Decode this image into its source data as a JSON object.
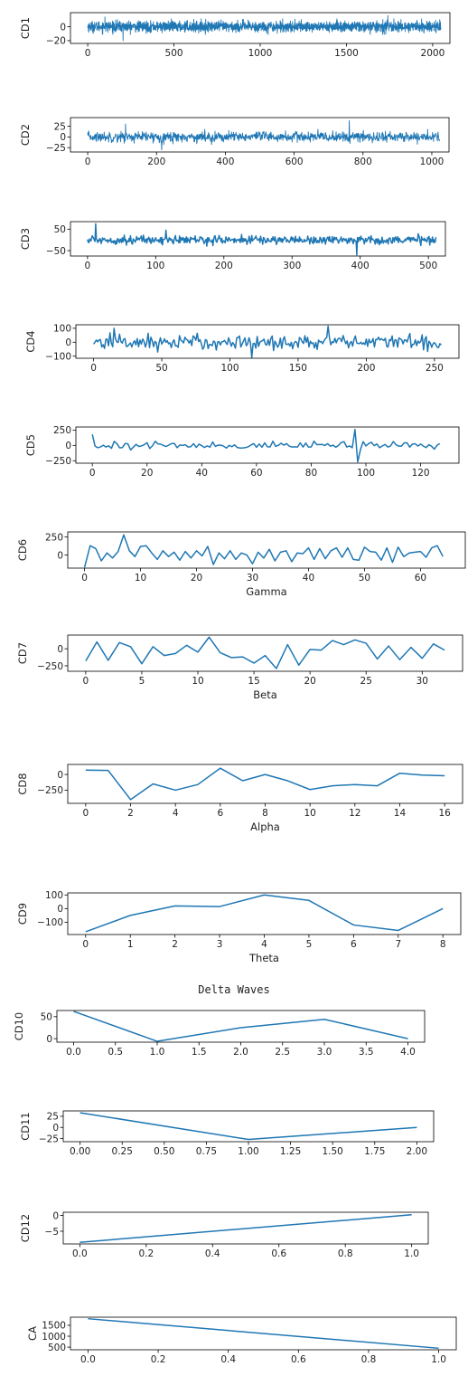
{
  "suptitle": "Delta Waves",
  "line_color": "#1f77b4",
  "chart_data": [
    {
      "type": "line",
      "ylabel": "CD1",
      "xlabel": "",
      "xlim": [
        -100,
        2100
      ],
      "ylim": [
        -24,
        20
      ],
      "xticks": [
        0,
        500,
        1000,
        1500,
        2000
      ],
      "yticks": [
        0,
        -20
      ],
      "n": 2048,
      "amplitude": 7,
      "spikes": [
        [
          205,
          -20
        ],
        [
          1740,
          16
        ],
        [
          100,
          14
        ]
      ]
    },
    {
      "type": "line",
      "ylabel": "CD2",
      "xlabel": "",
      "xlim": [
        -50,
        1050
      ],
      "ylim": [
        -35,
        45
      ],
      "xticks": [
        0,
        200,
        400,
        600,
        800,
        1000
      ],
      "yticks": [
        25,
        0,
        -25
      ],
      "n": 1024,
      "amplitude": 11,
      "spikes": [
        [
          760,
          38
        ],
        [
          110,
          30
        ],
        [
          215,
          -30
        ]
      ]
    },
    {
      "type": "line",
      "ylabel": "CD3",
      "xlabel": "",
      "xlim": [
        -25,
        525
      ],
      "ylim": [
        -75,
        85
      ],
      "xticks": [
        0,
        100,
        200,
        300,
        400,
        500
      ],
      "yticks": [
        50,
        -50
      ],
      "n": 512,
      "amplitude": 18,
      "spikes": [
        [
          12,
          75
        ],
        [
          395,
          -70
        ],
        [
          115,
          45
        ]
      ]
    },
    {
      "type": "line",
      "ylabel": "CD4",
      "xlabel": "",
      "xlim": [
        -13,
        268
      ],
      "ylim": [
        -115,
        125
      ],
      "xticks": [
        0,
        50,
        100,
        150,
        200,
        250
      ],
      "yticks": [
        100,
        0,
        -100
      ],
      "n": 256,
      "amplitude": 50,
      "spikes": [
        [
          172,
          115
        ],
        [
          116,
          -110
        ],
        [
          15,
          100
        ]
      ]
    },
    {
      "type": "line",
      "ylabel": "CD5",
      "xlabel": "",
      "xlim": [
        -6,
        134
      ],
      "ylim": [
        -290,
        300
      ],
      "xticks": [
        0,
        20,
        40,
        60,
        80,
        100,
        120
      ],
      "yticks": [
        250,
        0,
        -250
      ],
      "n": 128,
      "amplitude": 60,
      "spikes": [
        [
          0,
          180
        ],
        [
          96,
          260
        ],
        [
          97,
          -270
        ]
      ]
    },
    {
      "type": "line",
      "ylabel": "CD6",
      "xlabel": "Gamma",
      "xlim": [
        -3,
        68
      ],
      "ylim": [
        -180,
        320
      ],
      "xticks": [
        0,
        10,
        20,
        30,
        40,
        50,
        60
      ],
      "yticks": [
        250,
        0
      ],
      "x": [
        0,
        1,
        2,
        3,
        4,
        5,
        6,
        7,
        8,
        9,
        10,
        11,
        12,
        13,
        14,
        15,
        16,
        17,
        18,
        19,
        20,
        21,
        22,
        23,
        24,
        25,
        26,
        27,
        28,
        29,
        30,
        31,
        32,
        33,
        34,
        35,
        36,
        37,
        38,
        39,
        40,
        41,
        42,
        43,
        44,
        45,
        46,
        47,
        48,
        49,
        50,
        51,
        52,
        53,
        54,
        55,
        56,
        57,
        58,
        59,
        60,
        61,
        62,
        63,
        64
      ],
      "y": [
        -170,
        130,
        90,
        -80,
        30,
        -40,
        50,
        280,
        60,
        -20,
        120,
        130,
        30,
        -60,
        60,
        -20,
        40,
        -70,
        50,
        -40,
        60,
        -10,
        120,
        -130,
        30,
        -50,
        60,
        -60,
        30,
        0,
        -120,
        40,
        -40,
        80,
        -80,
        40,
        60,
        -90,
        30,
        20,
        100,
        -60,
        90,
        -50,
        60,
        100,
        -30,
        100,
        -60,
        -70,
        110,
        50,
        40,
        -70,
        100,
        -100,
        110,
        -20,
        30,
        40,
        50,
        -30,
        100,
        130,
        -20
      ]
    },
    {
      "type": "line",
      "ylabel": "CD7",
      "xlabel": "Beta",
      "xlim": [
        -1.6,
        33.6
      ],
      "ylim": [
        -330,
        200
      ],
      "xticks": [
        0,
        5,
        10,
        15,
        20,
        25,
        30
      ],
      "yticks": [
        0,
        -250
      ],
      "x": [
        0,
        1,
        2,
        3,
        4,
        5,
        6,
        7,
        8,
        9,
        10,
        11,
        12,
        13,
        14,
        15,
        16,
        17,
        18,
        19,
        20,
        21,
        22,
        23,
        24,
        25,
        26,
        27,
        28,
        29,
        30,
        31,
        32
      ],
      "y": [
        -180,
        100,
        -170,
        90,
        30,
        -220,
        30,
        -100,
        -70,
        50,
        -50,
        170,
        -60,
        -130,
        -120,
        -210,
        -100,
        -290,
        60,
        -240,
        -10,
        -20,
        120,
        60,
        130,
        80,
        -150,
        40,
        -160,
        20,
        -140,
        70,
        -20
      ]
    },
    {
      "type": "line",
      "ylabel": "CD8",
      "xlabel": "Alpha",
      "xlim": [
        -0.8,
        16.8
      ],
      "ylim": [
        -460,
        160
      ],
      "xticks": [
        0,
        2,
        4,
        6,
        8,
        10,
        12,
        14,
        16
      ],
      "yticks": [
        0,
        -250
      ],
      "x": [
        0,
        1,
        2,
        3,
        4,
        5,
        6,
        7,
        8,
        9,
        10,
        11,
        12,
        13,
        14,
        15,
        16
      ],
      "y": [
        70,
        65,
        -400,
        -150,
        -250,
        -160,
        100,
        -100,
        0,
        -100,
        -240,
        -180,
        -160,
        -180,
        20,
        -10,
        -20
      ]
    },
    {
      "type": "line",
      "ylabel": "CD9",
      "xlabel": "Theta",
      "xlim": [
        -0.4,
        8.4
      ],
      "ylim": [
        -190,
        115
      ],
      "xticks": [
        0,
        1,
        2,
        3,
        4,
        5,
        6,
        7,
        8
      ],
      "yticks": [
        100,
        0,
        -100
      ],
      "x": [
        0,
        1,
        2,
        3,
        4,
        5,
        6,
        7,
        8
      ],
      "y": [
        -170,
        -50,
        20,
        15,
        100,
        60,
        -120,
        -160,
        0
      ]
    },
    {
      "type": "line",
      "ylabel": "CD10",
      "xlabel": "",
      "xlim": [
        -0.2,
        4.2
      ],
      "ylim": [
        -8,
        64
      ],
      "xticks": [
        0.0,
        0.5,
        1.0,
        1.5,
        2.0,
        2.5,
        3.0,
        3.5,
        4.0
      ],
      "yticks": [
        50,
        0
      ],
      "x": [
        0,
        1,
        2,
        3,
        4
      ],
      "y": [
        62,
        -6,
        25,
        44,
        0
      ]
    },
    {
      "type": "line",
      "ylabel": "CD11",
      "xlabel": "",
      "xlim": [
        -0.1,
        2.1
      ],
      "ylim": [
        -32,
        37
      ],
      "xticks": [
        0.0,
        0.25,
        0.5,
        0.75,
        1.0,
        1.25,
        1.5,
        1.75,
        2.0
      ],
      "yticks": [
        25,
        0,
        -25
      ],
      "x": [
        0,
        1,
        2
      ],
      "y": [
        33,
        -27,
        0
      ]
    },
    {
      "type": "line",
      "ylabel": "CD12",
      "xlabel": "",
      "xlim": [
        -0.05,
        1.05
      ],
      "ylim": [
        -9,
        1
      ],
      "xticks": [
        0.0,
        0.2,
        0.4,
        0.6,
        0.8,
        1.0
      ],
      "yticks": [
        0,
        -5
      ],
      "x": [
        0,
        1
      ],
      "y": [
        -8.5,
        0.2
      ]
    },
    {
      "type": "line",
      "ylabel": "CA",
      "xlabel": "",
      "xlim": [
        -0.05,
        1.05
      ],
      "ylim": [
        380,
        1870
      ],
      "xticks": [
        0.0,
        0.2,
        0.4,
        0.6,
        0.8,
        1.0
      ],
      "yticks": [
        1500,
        1000,
        500
      ],
      "x": [
        0,
        1
      ],
      "y": [
        1800,
        450
      ]
    }
  ]
}
